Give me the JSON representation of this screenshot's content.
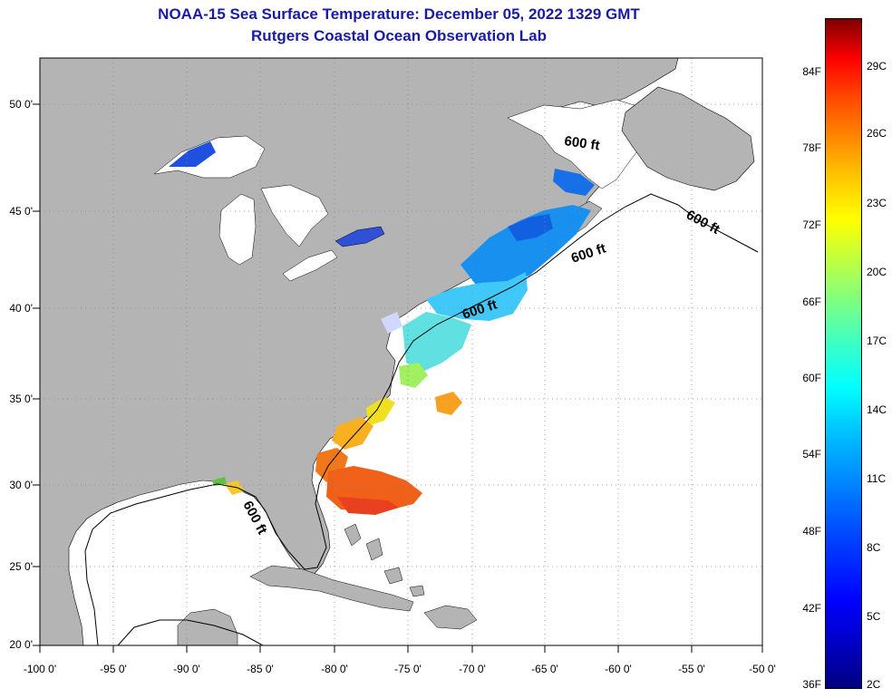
{
  "title_line1": "NOAA-15 Sea Surface Temperature:  December 05, 2022 1329 GMT",
  "title_line2": "Rutgers Coastal Ocean Observation Lab",
  "lat_labels": [
    "50 0'",
    "45 0'",
    "40 0'",
    "35 0'",
    "30 0'",
    "25 0'",
    "20 0'"
  ],
  "lon_labels": [
    "-100 0'",
    "-95 0'",
    "-90 0'",
    "-85 0'",
    "-80 0'",
    "-75 0'",
    "-70 0'",
    "-65 0'",
    "-60 0'",
    "-55 0'",
    "-50 0'"
  ],
  "contour_label": "600 ft",
  "colorbar": {
    "fahrenheit": [
      "84F",
      "78F",
      "72F",
      "66F",
      "60F",
      "54F",
      "48F",
      "42F",
      "36F"
    ],
    "celsius": [
      "29C",
      "26C",
      "23C",
      "20C",
      "17C",
      "14C",
      "11C",
      "8C",
      "5C",
      "2C"
    ],
    "low_color": "#00007f",
    "high_color": "#7f0000"
  },
  "colors": {
    "land": "#b4b4b4",
    "ocean": "#ffffff",
    "title": "#1a1aa8"
  }
}
